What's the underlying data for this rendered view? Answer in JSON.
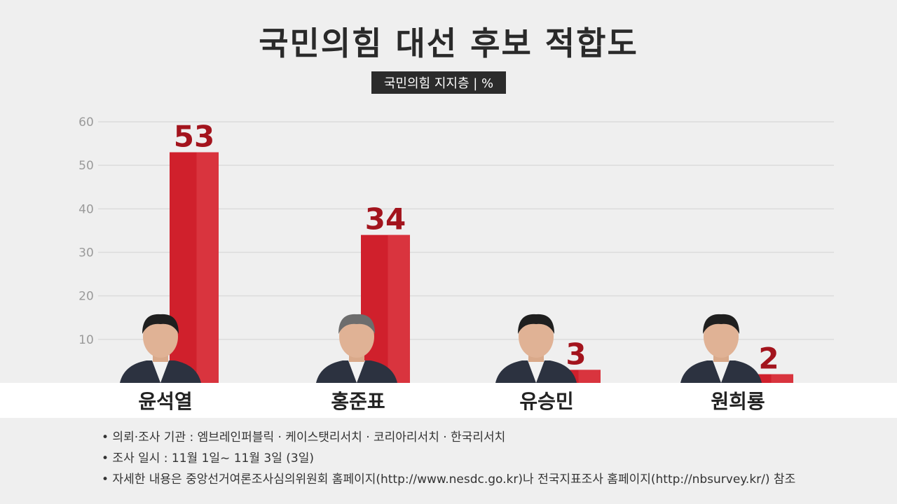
{
  "title": "국민의힘 대선 후보 적합도",
  "subtitle": "국민의힘 지지층 | %",
  "chart_data": {
    "type": "bar",
    "title": "국민의힘 대선 후보 적합도",
    "subtitle": "국민의힘 지지층 | %",
    "categories": [
      "윤석열",
      "홍준표",
      "유승민",
      "원희룡"
    ],
    "values": [
      53,
      34,
      3,
      2
    ],
    "yticks": [
      10,
      20,
      30,
      40,
      50,
      60
    ],
    "ylim": [
      0,
      60
    ],
    "grid": true,
    "bar_color": "#d0202c"
  },
  "notes": [
    "• 의뢰·조사 기관 : 엠브레인퍼블릭 · 케이스탯리서치 · 코리아리서치 · 한국리서치",
    "• 조사 일시 : 11월 1일~ 11월 3일 (3일)",
    "• 자세한 내용은 중앙선거여론조사심의위원회 홈페이지(http://www.nesdc.go.kr)나 전국지표조사 홈페이지(http://nbsurvey.kr/) 참조"
  ]
}
